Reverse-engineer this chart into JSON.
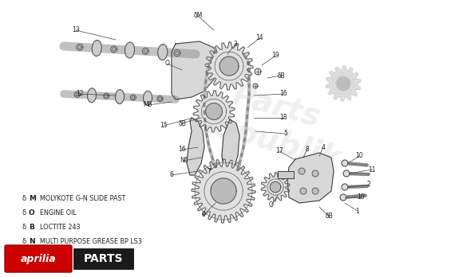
{
  "background_color": "#ffffff",
  "legend_items": [
    {
      "symbol": "δ M",
      "bold_letter": "M",
      "text": "  MOLYKOTE G-N SLIDE PAST"
    },
    {
      "symbol": "δ O",
      "bold_letter": "O",
      "text": "  ENGINE OIL"
    },
    {
      "symbol": "δ B",
      "bold_letter": "B",
      "text": "  LOCTITE 243"
    },
    {
      "symbol": "δ N",
      "bold_letter": "N",
      "text": "  MULTI PURPOSE GREASE BP LS3"
    }
  ],
  "fig_width": 5.7,
  "fig_height": 3.48,
  "dpi": 100,
  "line_color": "#444444",
  "fill_light": "#e8e8e8",
  "fill_mid": "#d0d0d0",
  "watermark_color": "#cccccc"
}
